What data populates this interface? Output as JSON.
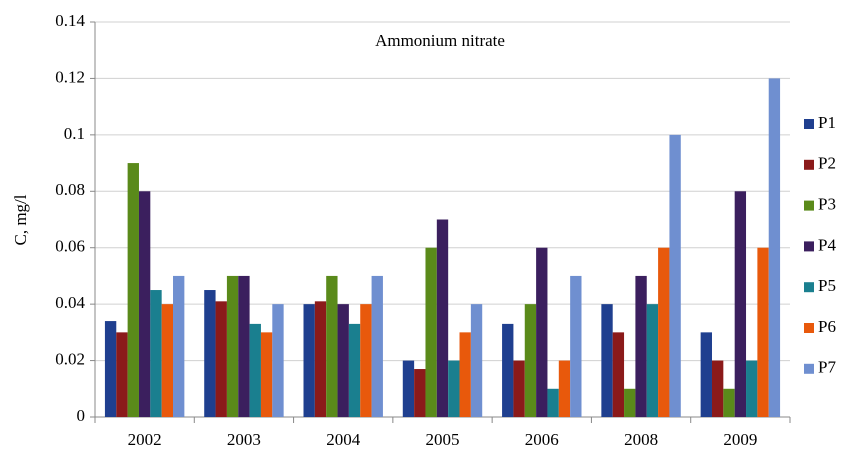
{
  "chart_data": {
    "type": "bar",
    "title": "Ammonium nitrate",
    "y_label": "C, mg/l",
    "categories": [
      "2002",
      "2003",
      "2004",
      "2005",
      "2006",
      "2008",
      "2009"
    ],
    "series": [
      {
        "name": "P1",
        "color": "#1f3f8f",
        "values": [
          0.034,
          0.045,
          0.04,
          0.02,
          0.033,
          0.04,
          0.03
        ]
      },
      {
        "name": "P2",
        "color": "#8b1a1a",
        "values": [
          0.03,
          0.041,
          0.041,
          0.017,
          0.02,
          0.03,
          0.02
        ]
      },
      {
        "name": "P3",
        "color": "#5a8a1a",
        "values": [
          0.09,
          0.05,
          0.05,
          0.06,
          0.04,
          0.01,
          0.01
        ]
      },
      {
        "name": "P4",
        "color": "#3b1f5e",
        "values": [
          0.08,
          0.05,
          0.04,
          0.07,
          0.06,
          0.05,
          0.08
        ]
      },
      {
        "name": "P5",
        "color": "#1a7f8f",
        "values": [
          0.045,
          0.033,
          0.033,
          0.02,
          0.01,
          0.04,
          0.02
        ]
      },
      {
        "name": "P6",
        "color": "#e8590c",
        "values": [
          0.04,
          0.03,
          0.04,
          0.03,
          0.02,
          0.06,
          0.06
        ]
      },
      {
        "name": "P7",
        "color": "#6f8fd0",
        "values": [
          0.05,
          0.04,
          0.05,
          0.04,
          0.05,
          0.1,
          0.12
        ]
      }
    ],
    "ylim": [
      0,
      0.14
    ],
    "yticks": [
      0,
      0.02,
      0.04,
      0.06,
      0.08,
      0.1,
      0.12,
      0.14
    ],
    "grid": true,
    "legend": "right"
  }
}
